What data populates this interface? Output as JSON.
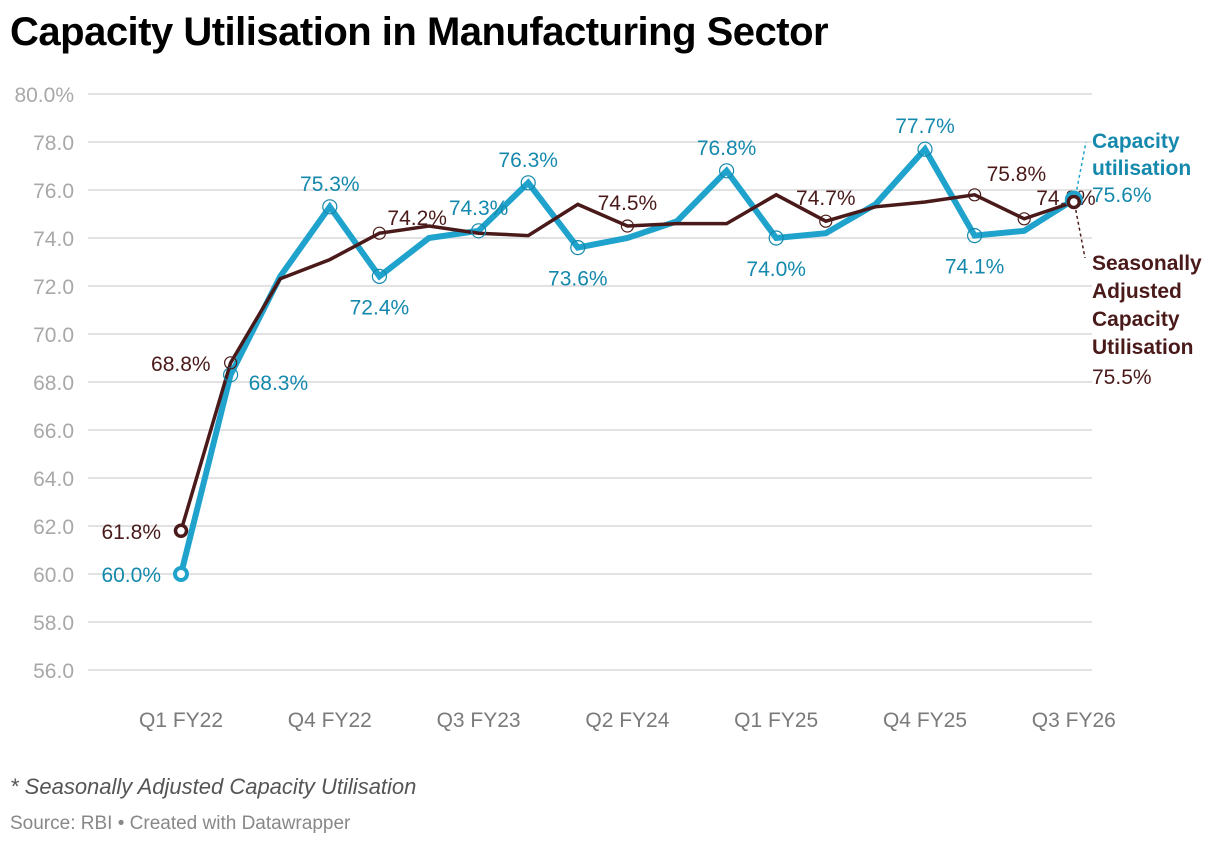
{
  "title": "Capacity Utilisation in Manufacturing Sector",
  "footnote": "* Seasonally Adjusted Capacity Utilisation",
  "source": "Source: RBI • Created with Datawrapper",
  "colors": {
    "capacity": "#1fa3cc",
    "capacity_text": "#1589ad",
    "seasonal": "#4a1a1a",
    "grid": "#e2e2e2"
  },
  "chart_data": {
    "type": "line",
    "title": "Capacity Utilisation in Manufacturing Sector",
    "xlabel": "",
    "ylabel": "",
    "ylim": [
      56,
      80
    ],
    "yticks": [
      56,
      58,
      60,
      62,
      64,
      66,
      68,
      70,
      72,
      74,
      76,
      78,
      80
    ],
    "ytick_labels": [
      "56.0",
      "58.0",
      "60.0",
      "62.0",
      "64.0",
      "66.0",
      "68.0",
      "70.0",
      "72.0",
      "74.0",
      "76.0",
      "78.0",
      "80.0%"
    ],
    "grid": true,
    "x": [
      "Q1 FY22",
      "Q2 FY22",
      "Q3 FY22",
      "Q4 FY22",
      "Q1 FY23",
      "Q2 FY23",
      "Q3 FY23",
      "Q4 FY23",
      "Q1 FY24",
      "Q2 FY24",
      "Q3 FY24",
      "Q4 FY24",
      "Q1 FY25",
      "Q2 FY25",
      "Q3 FY25",
      "Q4 FY25",
      "Q1 FY26",
      "Q2 FY26",
      "Q3 FY26"
    ],
    "xtick_labels": [
      "Q1 FY22",
      "Q4 FY22",
      "Q3 FY23",
      "Q2 FY24",
      "Q1 FY25",
      "Q4 FY25",
      "Q3 FY26"
    ],
    "xtick_indices": [
      0,
      3,
      6,
      9,
      12,
      15,
      18
    ],
    "series": [
      {
        "name": "Capacity utilisation",
        "legend_lines": [
          "Capacity",
          "utilisation"
        ],
        "end_label": "75.6%",
        "values": [
          60.0,
          68.3,
          72.4,
          75.3,
          72.4,
          74.0,
          74.3,
          76.3,
          73.6,
          74.0,
          74.7,
          76.8,
          74.0,
          74.2,
          75.4,
          77.7,
          74.1,
          74.3,
          75.6
        ],
        "labels": [
          {
            "i": 0,
            "text": "60.0%",
            "pos": "left"
          },
          {
            "i": 1,
            "text": "68.3%",
            "pos": "right"
          },
          {
            "i": 3,
            "text": "75.3%",
            "pos": "top"
          },
          {
            "i": 4,
            "text": "72.4%",
            "pos": "bottom"
          },
          {
            "i": 6,
            "text": "74.3%",
            "pos": "top"
          },
          {
            "i": 7,
            "text": "76.3%",
            "pos": "top"
          },
          {
            "i": 8,
            "text": "73.6%",
            "pos": "bottom"
          },
          {
            "i": 11,
            "text": "76.8%",
            "pos": "top"
          },
          {
            "i": 12,
            "text": "74.0%",
            "pos": "bottom"
          },
          {
            "i": 15,
            "text": "77.7%",
            "pos": "top"
          },
          {
            "i": 16,
            "text": "74.1%",
            "pos": "bottom"
          }
        ]
      },
      {
        "name": "Seasonally Adjusted Capacity Utilisation",
        "legend_lines": [
          "Seasonally",
          "Adjusted",
          "Capacity",
          "Utilisation"
        ],
        "end_label": "75.5%",
        "values": [
          61.8,
          68.8,
          72.3,
          73.1,
          74.2,
          74.5,
          74.2,
          74.1,
          75.4,
          74.5,
          74.6,
          74.6,
          75.8,
          74.7,
          75.3,
          75.5,
          75.8,
          74.8,
          75.5
        ],
        "labels": [
          {
            "i": 0,
            "text": "61.8%",
            "pos": "left"
          },
          {
            "i": 1,
            "text": "68.8%",
            "pos": "left"
          },
          {
            "i": 4,
            "text": "74.2%",
            "pos": "topright"
          },
          {
            "i": 9,
            "text": "74.5%",
            "pos": "top"
          },
          {
            "i": 13,
            "text": "74.7%",
            "pos": "top"
          },
          {
            "i": 16,
            "text": "75.8%",
            "pos": "topleft"
          },
          {
            "i": 17,
            "text": "74.8%",
            "pos": "topleft"
          }
        ]
      }
    ]
  }
}
